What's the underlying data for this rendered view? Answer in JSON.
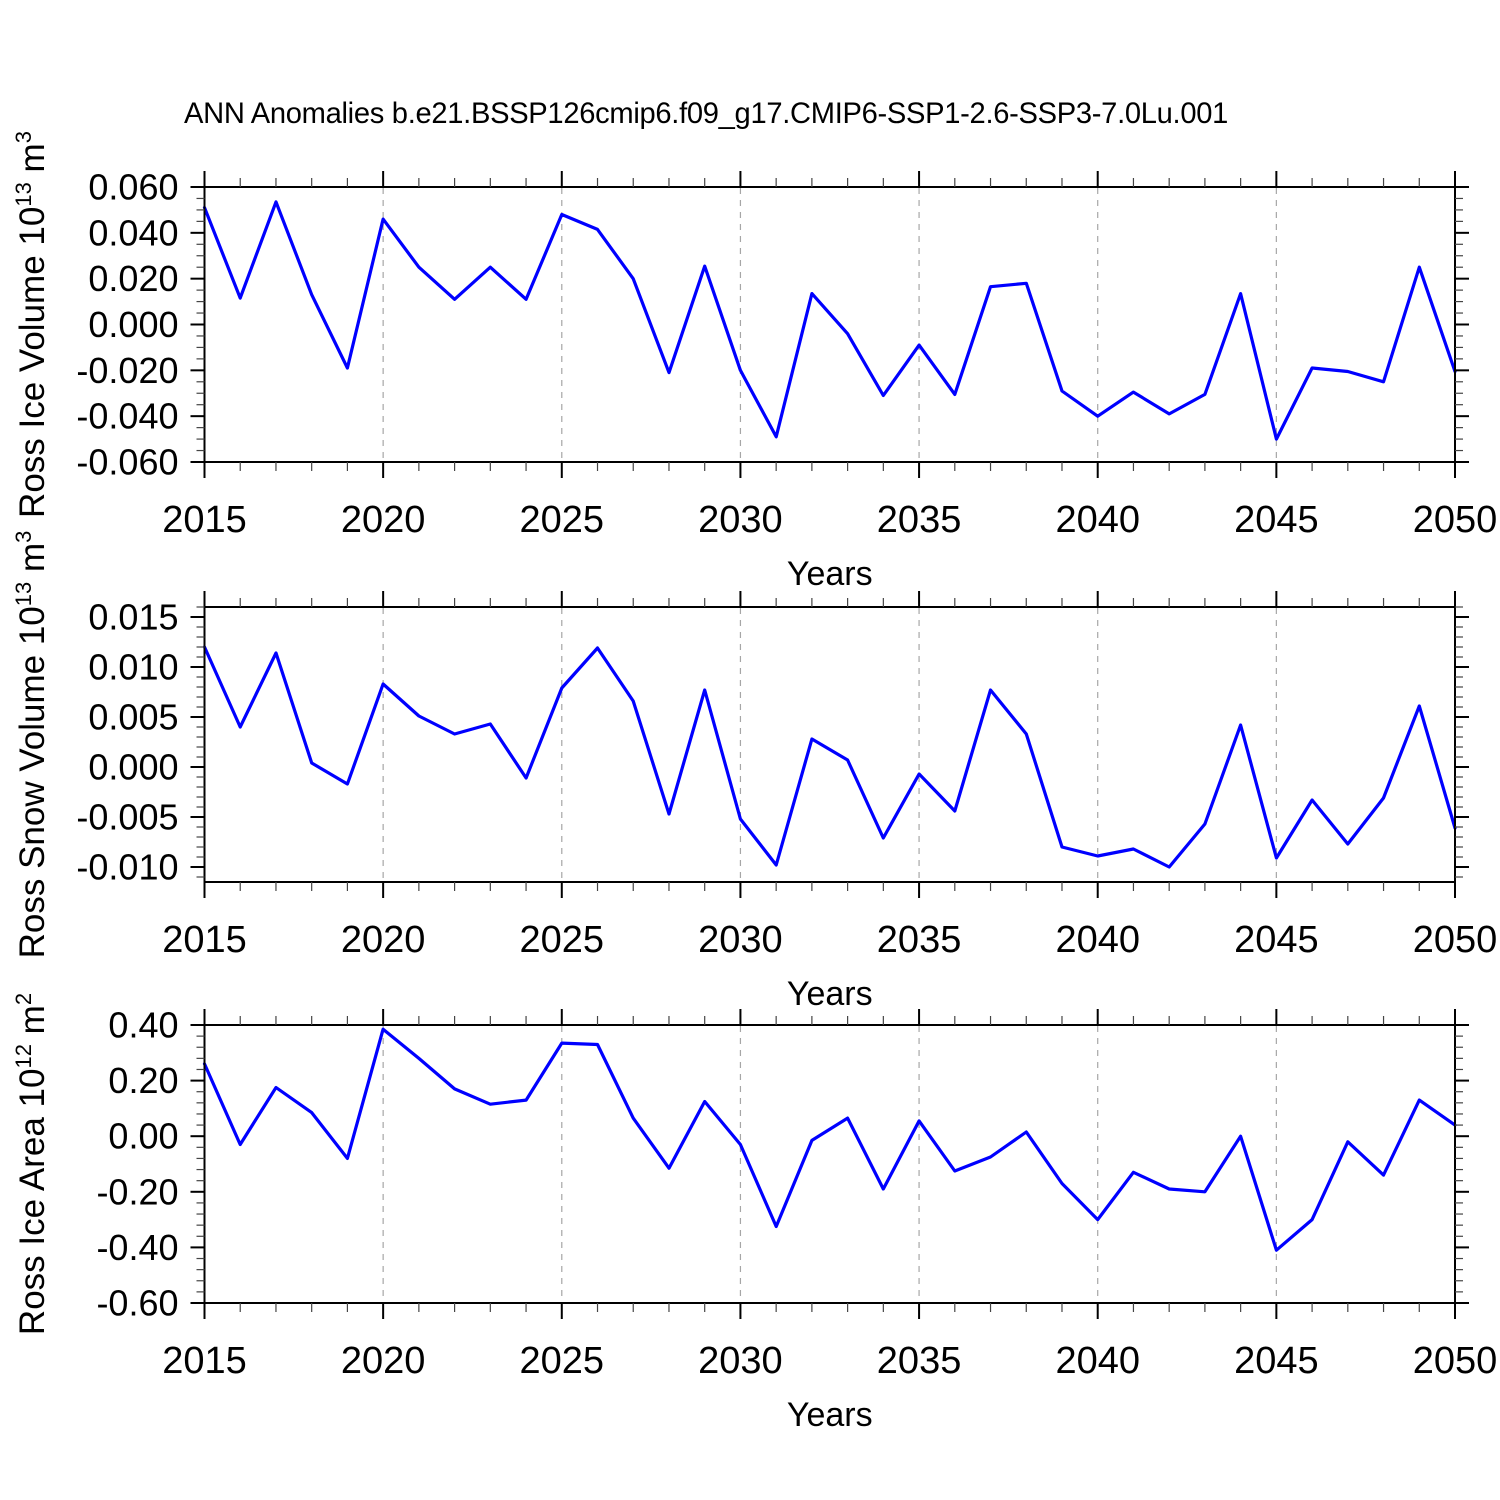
{
  "title": "ANN Anomalies b.e21.BSSP126cmip6.f09_g17.CMIP6-SSP1-2.6-SSP3-7.0Lu.001",
  "styles": {
    "line_color": "#0000ff",
    "grid_color": "#a6a6a6",
    "axis_color": "#000000",
    "minor_tick_color": "#444444",
    "background": "#ffffff"
  },
  "chart_data": [
    {
      "type": "line",
      "title": "",
      "xlabel": "Years",
      "ylabel": "Ross Ice Volume 10^13 m^3",
      "ylabel_parts": [
        {
          "text": "Ross Ice Volume 10"
        },
        {
          "text": "13",
          "sup": true
        },
        {
          "text": " m"
        },
        {
          "text": "3",
          "sup": true
        }
      ],
      "x": [
        2015,
        2016,
        2017,
        2018,
        2019,
        2020,
        2021,
        2022,
        2023,
        2024,
        2025,
        2026,
        2027,
        2028,
        2029,
        2030,
        2031,
        2032,
        2033,
        2034,
        2035,
        2036,
        2037,
        2038,
        2039,
        2040,
        2041,
        2042,
        2043,
        2044,
        2045,
        2046,
        2047,
        2048,
        2049,
        2050
      ],
      "values": [
        0.051,
        0.0115,
        0.0535,
        0.013,
        -0.019,
        0.046,
        0.025,
        0.011,
        0.025,
        0.011,
        0.048,
        0.0415,
        0.02,
        -0.021,
        0.0255,
        -0.02,
        -0.049,
        0.0135,
        -0.004,
        -0.031,
        -0.009,
        -0.0305,
        0.0165,
        0.018,
        -0.029,
        -0.04,
        -0.0295,
        -0.039,
        -0.0305,
        0.0135,
        -0.05,
        -0.019,
        -0.0205,
        -0.025,
        0.025,
        -0.0205
      ],
      "xlim": [
        2015,
        2050
      ],
      "ylim": [
        -0.06,
        0.06
      ],
      "yticks": [
        0.06,
        0.04,
        0.02,
        0.0,
        -0.02,
        -0.04,
        -0.06
      ],
      "ytick_labels": [
        "0.060",
        "0.040",
        "0.020",
        "0.000",
        "-0.020",
        "-0.040",
        "-0.060"
      ],
      "yminor_step": 0.005,
      "xticks": [
        2015,
        2020,
        2025,
        2030,
        2035,
        2040,
        2045,
        2050
      ],
      "xtick_labels": [
        "2015",
        "2020",
        "2025",
        "2030",
        "2035",
        "2040",
        "2045",
        "2050"
      ],
      "xminor_step": 1,
      "grid_x": [
        2020,
        2025,
        2030,
        2035,
        2040,
        2045
      ],
      "grid": "vertical-dashed",
      "legend": "none"
    },
    {
      "type": "line",
      "title": "",
      "xlabel": "Years",
      "ylabel": "Ross Snow Volume 10^13 m^3",
      "ylabel_parts": [
        {
          "text": "Ross Snow Volume 10"
        },
        {
          "text": "13",
          "sup": true
        },
        {
          "text": " m"
        },
        {
          "text": "3",
          "sup": true
        }
      ],
      "x": [
        2015,
        2016,
        2017,
        2018,
        2019,
        2020,
        2021,
        2022,
        2023,
        2024,
        2025,
        2026,
        2027,
        2028,
        2029,
        2030,
        2031,
        2032,
        2033,
        2034,
        2035,
        2036,
        2037,
        2038,
        2039,
        2040,
        2041,
        2042,
        2043,
        2044,
        2045,
        2046,
        2047,
        2048,
        2049,
        2050
      ],
      "values": [
        0.012,
        0.004,
        0.0114,
        0.0004,
        -0.0017,
        0.0083,
        0.0051,
        0.0033,
        0.0043,
        -0.0011,
        0.0079,
        0.0119,
        0.0066,
        -0.0047,
        0.0077,
        -0.0052,
        -0.0098,
        0.0028,
        0.0007,
        -0.0071,
        -0.0007,
        -0.0044,
        0.0077,
        0.0033,
        -0.008,
        -0.0089,
        -0.0082,
        -0.01,
        -0.0057,
        0.0042,
        -0.0091,
        -0.0033,
        -0.0077,
        -0.0031,
        0.0061,
        -0.0061
      ],
      "xlim": [
        2015,
        2050
      ],
      "ylim": [
        -0.0115,
        0.016
      ],
      "yticks": [
        0.015,
        0.01,
        0.005,
        0.0,
        -0.005,
        -0.01
      ],
      "ytick_labels": [
        "0.015",
        "0.010",
        "0.005",
        "0.000",
        "-0.005",
        "-0.010"
      ],
      "yminor_step": 0.001,
      "xticks": [
        2015,
        2020,
        2025,
        2030,
        2035,
        2040,
        2045,
        2050
      ],
      "xtick_labels": [
        "2015",
        "2020",
        "2025",
        "2030",
        "2035",
        "2040",
        "2045",
        "2050"
      ],
      "xminor_step": 1,
      "grid_x": [
        2020,
        2025,
        2030,
        2035,
        2040,
        2045
      ],
      "grid": "vertical-dashed",
      "legend": "none"
    },
    {
      "type": "line",
      "title": "",
      "xlabel": "Years",
      "ylabel": "Ross Ice Area 10^12 m^2",
      "ylabel_parts": [
        {
          "text": "Ross Ice Area 10"
        },
        {
          "text": "12",
          "sup": true
        },
        {
          "text": " m"
        },
        {
          "text": "2",
          "sup": true
        }
      ],
      "x": [
        2015,
        2016,
        2017,
        2018,
        2019,
        2020,
        2021,
        2022,
        2023,
        2024,
        2025,
        2026,
        2027,
        2028,
        2029,
        2030,
        2031,
        2032,
        2033,
        2034,
        2035,
        2036,
        2037,
        2038,
        2039,
        2040,
        2041,
        2042,
        2043,
        2044,
        2045,
        2046,
        2047,
        2048,
        2049,
        2050
      ],
      "values": [
        0.26,
        -0.03,
        0.175,
        0.085,
        -0.08,
        0.385,
        0.28,
        0.17,
        0.115,
        0.13,
        0.335,
        0.33,
        0.065,
        -0.115,
        0.125,
        -0.03,
        -0.325,
        -0.015,
        0.065,
        -0.19,
        0.055,
        -0.125,
        -0.075,
        0.015,
        -0.17,
        -0.3,
        -0.13,
        -0.19,
        -0.2,
        0.0,
        -0.41,
        -0.3,
        -0.02,
        -0.14,
        0.13,
        0.04
      ],
      "xlim": [
        2015,
        2050
      ],
      "ylim": [
        -0.6,
        0.4
      ],
      "yticks": [
        0.4,
        0.2,
        0.0,
        -0.2,
        -0.4,
        -0.6
      ],
      "ytick_labels": [
        "0.40",
        "0.20",
        "0.00",
        "-0.20",
        "-0.40",
        "-0.60"
      ],
      "yminor_step": 0.04,
      "xticks": [
        2015,
        2020,
        2025,
        2030,
        2035,
        2040,
        2045,
        2050
      ],
      "xtick_labels": [
        "2015",
        "2020",
        "2025",
        "2030",
        "2035",
        "2040",
        "2045",
        "2050"
      ],
      "xminor_step": 1,
      "grid_x": [
        2020,
        2025,
        2030,
        2035,
        2040,
        2045
      ],
      "grid": "vertical-dashed",
      "legend": "none"
    }
  ]
}
